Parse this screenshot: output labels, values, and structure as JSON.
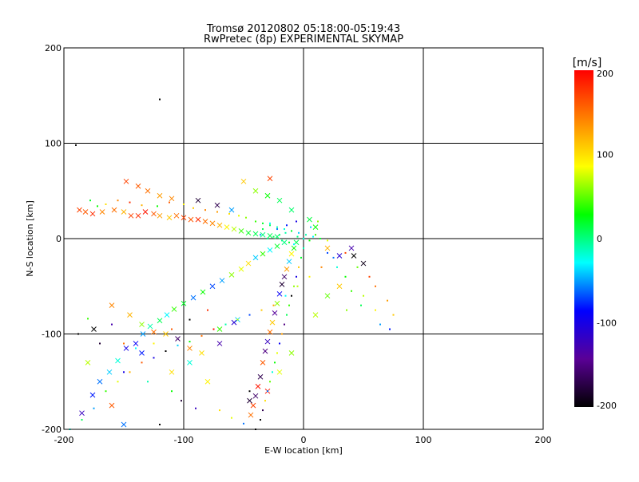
{
  "chart_data": {
    "type": "scatter",
    "title": "Tromsø 20120802 05:18:00-05:19:43",
    "subtitle": "RwPretec (8p) EXPERIMENTAL SKYMAP",
    "xlabel": "E-W location [km]",
    "ylabel": "N-S location [km]",
    "xlim": [
      -200,
      200
    ],
    "ylim": [
      -200,
      200
    ],
    "xticks": [
      -200,
      -100,
      0,
      100,
      200
    ],
    "yticks": [
      -200,
      -100,
      0,
      100,
      200
    ],
    "grid": true,
    "colorbar": {
      "label": "[m/s]",
      "range": [
        -200,
        200
      ],
      "ticks": [
        200,
        100,
        0,
        -100,
        -200
      ],
      "colors": [
        "#000000",
        "#5a0096",
        "#0000ff",
        "#00ffff",
        "#00ff00",
        "#ffff00",
        "#ff8000",
        "#ff0000"
      ]
    },
    "series": [
      {
        "marker": "x",
        "points": [
          [
            -187,
            30,
            170
          ],
          [
            -182,
            28,
            160
          ],
          [
            -176,
            26,
            180
          ],
          [
            -168,
            28,
            140
          ],
          [
            -158,
            30,
            150
          ],
          [
            -150,
            28,
            120
          ],
          [
            -144,
            24,
            170
          ],
          [
            -138,
            24,
            180
          ],
          [
            -132,
            28,
            190
          ],
          [
            -125,
            26,
            160
          ],
          [
            -120,
            24,
            130
          ],
          [
            -112,
            22,
            110
          ],
          [
            -106,
            24,
            150
          ],
          [
            -100,
            22,
            170
          ],
          [
            -94,
            20,
            160
          ],
          [
            -88,
            20,
            180
          ],
          [
            -82,
            18,
            150
          ],
          [
            -76,
            16,
            140
          ],
          [
            -70,
            14,
            120
          ],
          [
            -64,
            12,
            90
          ],
          [
            -58,
            10,
            70
          ],
          [
            -52,
            8,
            40
          ],
          [
            -46,
            6,
            20
          ],
          [
            -40,
            5,
            10
          ],
          [
            -34,
            4,
            0
          ],
          [
            -28,
            3,
            10
          ],
          [
            -22,
            2,
            5
          ],
          [
            -185,
            -183,
            -120
          ],
          [
            -176,
            -164,
            -80
          ],
          [
            -170,
            -150,
            -60
          ],
          [
            -162,
            -140,
            -40
          ],
          [
            -155,
            -128,
            -20
          ],
          [
            -148,
            -115,
            -100
          ],
          [
            -140,
            -110,
            -90
          ],
          [
            -134,
            -100,
            -50
          ],
          [
            -128,
            -92,
            -10
          ],
          [
            -120,
            -86,
            10
          ],
          [
            -114,
            -80,
            -30
          ],
          [
            -108,
            -74,
            40
          ],
          [
            -100,
            -68,
            20
          ],
          [
            -92,
            -62,
            -60
          ],
          [
            -84,
            -56,
            30
          ],
          [
            -76,
            -50,
            -70
          ],
          [
            -68,
            -44,
            -50
          ],
          [
            -60,
            -38,
            60
          ],
          [
            -52,
            -32,
            80
          ],
          [
            -46,
            -26,
            100
          ],
          [
            -40,
            -20,
            -40
          ],
          [
            -34,
            -16,
            40
          ],
          [
            -28,
            -12,
            -30
          ],
          [
            -22,
            -8,
            20
          ],
          [
            -16,
            -4,
            0
          ],
          [
            -44,
            -185,
            150
          ],
          [
            -42,
            -175,
            170
          ],
          [
            -40,
            -165,
            -160
          ],
          [
            -38,
            -155,
            190
          ],
          [
            -36,
            -145,
            -170
          ],
          [
            -34,
            -130,
            160
          ],
          [
            -32,
            -118,
            -150
          ],
          [
            -30,
            -108,
            -120
          ],
          [
            -28,
            -98,
            150
          ],
          [
            -26,
            -88,
            110
          ],
          [
            -24,
            -78,
            -140
          ],
          [
            -22,
            -68,
            60
          ],
          [
            -20,
            -58,
            -90
          ],
          [
            -18,
            -48,
            -180
          ],
          [
            -16,
            -40,
            -160
          ],
          [
            -14,
            -32,
            130
          ],
          [
            -12,
            -24,
            -40
          ],
          [
            -10,
            -16,
            90
          ],
          [
            -8,
            -10,
            30
          ],
          [
            -6,
            -4,
            10
          ],
          [
            -148,
            60,
            170
          ],
          [
            -138,
            55,
            160
          ],
          [
            -130,
            50,
            150
          ],
          [
            -120,
            45,
            130
          ],
          [
            -110,
            42,
            140
          ],
          [
            -88,
            40,
            -180
          ],
          [
            -72,
            35,
            -170
          ],
          [
            -60,
            30,
            -50
          ],
          [
            -28,
            63,
            170
          ],
          [
            -180,
            -130,
            70
          ],
          [
            -160,
            -175,
            160
          ],
          [
            -150,
            -195,
            -60
          ],
          [
            -135,
            -120,
            -80
          ],
          [
            -110,
            -140,
            100
          ],
          [
            -95,
            -130,
            -20
          ],
          [
            -80,
            -150,
            90
          ],
          [
            -70,
            -95,
            40
          ],
          [
            -55,
            -85,
            -40
          ],
          [
            -45,
            -170,
            -180
          ],
          [
            -30,
            -160,
            190
          ],
          [
            -20,
            -140,
            80
          ],
          [
            -10,
            -120,
            60
          ],
          [
            -50,
            60,
            110
          ],
          [
            -40,
            50,
            60
          ],
          [
            -30,
            45,
            30
          ],
          [
            -20,
            40,
            10
          ],
          [
            -10,
            30,
            5
          ],
          [
            5,
            20,
            15
          ],
          [
            10,
            12,
            30
          ],
          [
            20,
            -10,
            120
          ],
          [
            30,
            -18,
            -110
          ],
          [
            42,
            -18,
            -200
          ],
          [
            50,
            -26,
            -190
          ],
          [
            40,
            -10,
            -130
          ],
          [
            30,
            -50,
            110
          ],
          [
            20,
            -60,
            50
          ],
          [
            10,
            -80,
            70
          ],
          [
            -58,
            -88,
            -110
          ],
          [
            -70,
            -110,
            -130
          ],
          [
            -85,
            -120,
            100
          ],
          [
            -95,
            -115,
            140
          ],
          [
            -105,
            -105,
            -160
          ],
          [
            -115,
            -100,
            110
          ],
          [
            -125,
            -98,
            150
          ],
          [
            -135,
            -90,
            60
          ],
          [
            -145,
            -80,
            120
          ],
          [
            -160,
            -70,
            140
          ],
          [
            -175,
            -95,
            -200
          ]
        ]
      },
      {
        "marker": "dot",
        "points": [
          [
            -190,
            98,
            -200
          ],
          [
            -120,
            146,
            -200
          ],
          [
            -178,
            40,
            20
          ],
          [
            -172,
            34,
            30
          ],
          [
            -165,
            36,
            100
          ],
          [
            -155,
            40,
            140
          ],
          [
            -145,
            38,
            180
          ],
          [
            -135,
            35,
            120
          ],
          [
            -122,
            34,
            30
          ],
          [
            -112,
            38,
            160
          ],
          [
            -100,
            36,
            90
          ],
          [
            -92,
            32,
            110
          ],
          [
            -82,
            30,
            140
          ],
          [
            -72,
            28,
            130
          ],
          [
            -62,
            26,
            100
          ],
          [
            -54,
            24,
            80
          ],
          [
            -48,
            22,
            60
          ],
          [
            -40,
            18,
            40
          ],
          [
            -34,
            16,
            20
          ],
          [
            -28,
            14,
            10
          ],
          [
            -22,
            12,
            -10
          ],
          [
            -16,
            10,
            -20
          ],
          [
            -10,
            8,
            -30
          ],
          [
            -4,
            6,
            -40
          ],
          [
            2,
            4,
            -10
          ],
          [
            8,
            2,
            -30
          ],
          [
            14,
            0,
            20
          ],
          [
            20,
            -2,
            80
          ],
          [
            -195,
            -200,
            -20
          ],
          [
            -185,
            -190,
            10
          ],
          [
            -175,
            -178,
            -50
          ],
          [
            -165,
            -160,
            40
          ],
          [
            -155,
            -150,
            80
          ],
          [
            -145,
            -140,
            120
          ],
          [
            -135,
            -130,
            160
          ],
          [
            -125,
            -125,
            -100
          ],
          [
            -115,
            -118,
            -200
          ],
          [
            -105,
            -112,
            -40
          ],
          [
            -95,
            -108,
            30
          ],
          [
            -85,
            -102,
            150
          ],
          [
            -75,
            -95,
            190
          ],
          [
            -65,
            -90,
            -10
          ],
          [
            -55,
            -85,
            60
          ],
          [
            -45,
            -80,
            -70
          ],
          [
            -35,
            -75,
            110
          ],
          [
            -25,
            -70,
            130
          ],
          [
            -15,
            -60,
            -30
          ],
          [
            -5,
            -50,
            70
          ],
          [
            5,
            -40,
            90
          ],
          [
            15,
            -30,
            140
          ],
          [
            25,
            -20,
            -60
          ],
          [
            35,
            -15,
            170
          ],
          [
            -40,
            -200,
            -200
          ],
          [
            -36,
            -190,
            -200
          ],
          [
            -34,
            -180,
            -170
          ],
          [
            -32,
            -170,
            100
          ],
          [
            -30,
            -160,
            -60
          ],
          [
            -28,
            -150,
            50
          ],
          [
            -26,
            -140,
            -20
          ],
          [
            -24,
            -130,
            30
          ],
          [
            -22,
            -120,
            80
          ],
          [
            -20,
            -110,
            -90
          ],
          [
            -18,
            -100,
            130
          ],
          [
            -16,
            -90,
            -150
          ],
          [
            -14,
            -80,
            10
          ],
          [
            -12,
            -70,
            40
          ],
          [
            -10,
            -60,
            -200
          ],
          [
            -8,
            -50,
            60
          ],
          [
            -6,
            -40,
            -100
          ],
          [
            -4,
            -30,
            110
          ],
          [
            -2,
            -20,
            20
          ],
          [
            0,
            -10,
            -10
          ],
          [
            -30,
            0,
            0
          ],
          [
            -25,
            2,
            10
          ],
          [
            -20,
            4,
            5
          ],
          [
            -15,
            6,
            -10
          ],
          [
            -10,
            8,
            20
          ],
          [
            -5,
            2,
            0
          ],
          [
            0,
            0,
            -20
          ],
          [
            5,
            -2,
            30
          ],
          [
            10,
            4,
            40
          ],
          [
            -8,
            -6,
            -30
          ],
          [
            -12,
            -4,
            20
          ],
          [
            -18,
            -2,
            0
          ],
          [
            -22,
            10,
            -60
          ],
          [
            -14,
            14,
            -80
          ],
          [
            -6,
            18,
            -100
          ],
          [
            6,
            12,
            -40
          ],
          [
            12,
            18,
            60
          ],
          [
            -28,
            16,
            -30
          ],
          [
            -34,
            10,
            10
          ],
          [
            -36,
            4,
            -50
          ],
          [
            -120,
            -195,
            -200
          ],
          [
            -102,
            -170,
            -180
          ],
          [
            -90,
            -178,
            -120
          ],
          [
            -70,
            -180,
            100
          ],
          [
            -60,
            -188,
            80
          ],
          [
            -50,
            -194,
            -60
          ],
          [
            -45,
            -160,
            -200
          ],
          [
            -110,
            -160,
            30
          ],
          [
            -130,
            -150,
            -10
          ],
          [
            -150,
            -140,
            -100
          ],
          [
            -170,
            -110,
            -180
          ],
          [
            -188,
            -100,
            -200
          ],
          [
            -180,
            -84,
            40
          ],
          [
            -160,
            -90,
            -130
          ],
          [
            -150,
            -110,
            150
          ],
          [
            -140,
            -115,
            -30
          ],
          [
            -125,
            -110,
            90
          ],
          [
            -110,
            -95,
            160
          ],
          [
            -95,
            -85,
            -200
          ],
          [
            -80,
            -75,
            180
          ],
          [
            55,
            -40,
            170
          ],
          [
            60,
            -50,
            150
          ],
          [
            70,
            -65,
            130
          ],
          [
            75,
            -80,
            110
          ],
          [
            60,
            -75,
            90
          ],
          [
            50,
            -60,
            70
          ],
          [
            45,
            -30,
            50
          ],
          [
            35,
            -40,
            30
          ],
          [
            28,
            -30,
            -20
          ],
          [
            20,
            -15,
            -70
          ],
          [
            72,
            -95,
            -80
          ],
          [
            64,
            -90,
            -50
          ],
          [
            48,
            -70,
            10
          ],
          [
            40,
            -55,
            40
          ],
          [
            36,
            -75,
            60
          ]
        ]
      }
    ]
  }
}
